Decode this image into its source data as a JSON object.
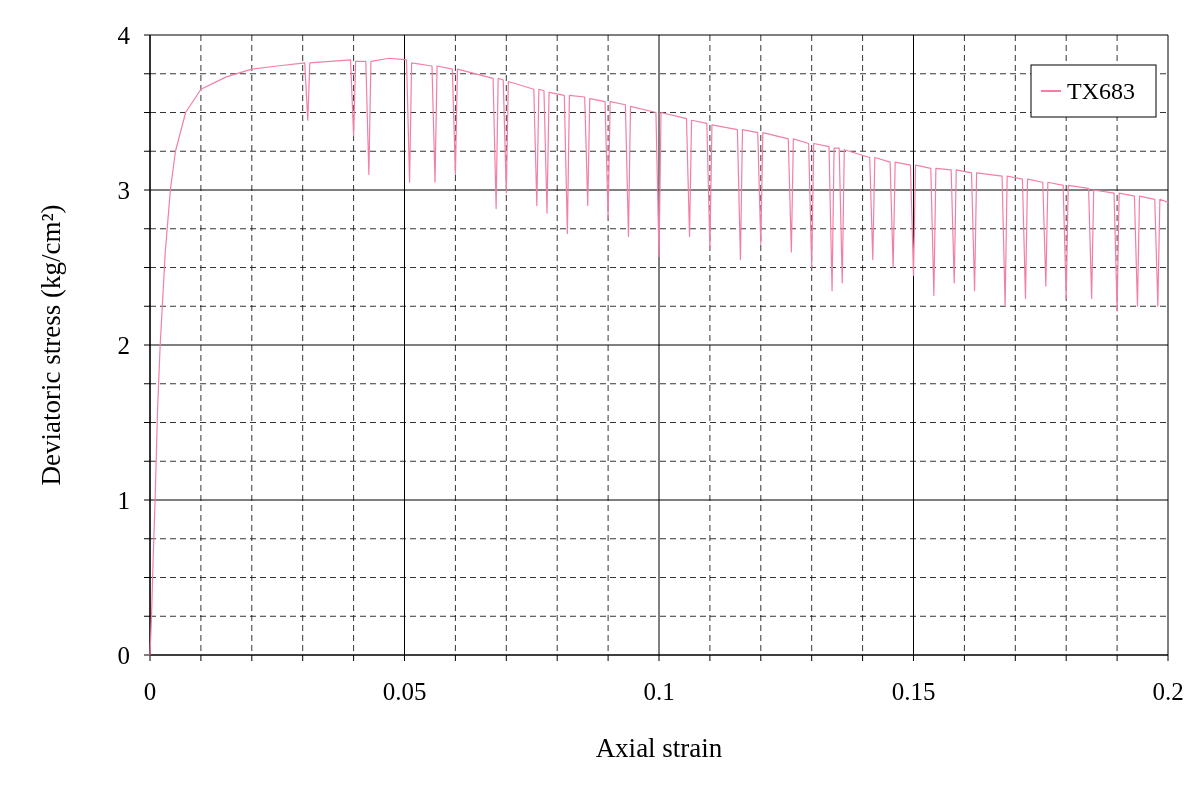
{
  "chart_data": {
    "type": "line",
    "xlabel": "Axial strain",
    "ylabel": "Deviatoric stress (kg/cm²)",
    "xlim": [
      0,
      0.2
    ],
    "ylim": [
      0,
      4
    ],
    "xticks": [
      0,
      {
        "value": 0.01,
        "label": null
      },
      {
        "value": 0.02,
        "label": null
      },
      {
        "value": 0.03,
        "label": null
      },
      {
        "value": 0.04,
        "label": null
      },
      0.05,
      {
        "value": 0.06,
        "label": null
      },
      {
        "value": 0.07,
        "label": null
      },
      {
        "value": 0.08,
        "label": null
      },
      {
        "value": 0.09,
        "label": null
      },
      0.1,
      {
        "value": 0.11,
        "label": null
      },
      {
        "value": 0.12,
        "label": null
      },
      {
        "value": 0.13,
        "label": null
      },
      {
        "value": 0.14,
        "label": null
      },
      0.15,
      {
        "value": 0.16,
        "label": null
      },
      {
        "value": 0.17,
        "label": null
      },
      {
        "value": 0.18,
        "label": null
      },
      {
        "value": 0.19,
        "label": null
      },
      0.2
    ],
    "yticks": [
      0,
      {
        "value": 0.25,
        "label": null
      },
      {
        "value": 0.5,
        "label": null
      },
      {
        "value": 0.75,
        "label": null
      },
      1,
      {
        "value": 1.25,
        "label": null
      },
      {
        "value": 1.5,
        "label": null
      },
      {
        "value": 1.75,
        "label": null
      },
      2,
      {
        "value": 2.25,
        "label": null
      },
      {
        "value": 2.5,
        "label": null
      },
      {
        "value": 2.75,
        "label": null
      },
      3,
      {
        "value": 3.25,
        "label": null
      },
      {
        "value": 3.5,
        "label": null
      },
      {
        "value": 3.75,
        "label": null
      },
      4
    ],
    "grid": true,
    "legend": "top right",
    "marker": "none",
    "line_style": "solid",
    "series": [
      {
        "name": "TX683",
        "color": "#f27fa6",
        "x": [
          0,
          0.0003,
          0.0006,
          0.001,
          0.0015,
          0.002,
          0.003,
          0.004,
          0.005,
          0.007,
          0.01,
          0.015,
          0.02,
          0.025,
          0.0304,
          0.031,
          0.0314,
          0.0394,
          0.04,
          0.0404,
          0.0424,
          0.043,
          0.0434,
          0.047,
          0.0504,
          0.051,
          0.0514,
          0.0554,
          0.056,
          0.0564,
          0.0594,
          0.06,
          0.0604,
          0.0674,
          0.068,
          0.0684,
          0.0694,
          0.07,
          0.0704,
          0.0754,
          0.076,
          0.0764,
          0.0774,
          0.078,
          0.0784,
          0.0814,
          0.082,
          0.0824,
          0.0854,
          0.086,
          0.0864,
          0.0894,
          0.09,
          0.0904,
          0.0934,
          0.094,
          0.0944,
          0.0994,
          0.1,
          0.1004,
          0.1054,
          0.106,
          0.1064,
          0.1094,
          0.11,
          0.1104,
          0.1154,
          0.116,
          0.1164,
          0.1194,
          0.12,
          0.1204,
          0.1254,
          0.126,
          0.1264,
          0.1294,
          0.13,
          0.1304,
          0.1334,
          0.134,
          0.1344,
          0.1354,
          0.136,
          0.1364,
          0.1414,
          0.142,
          0.1424,
          0.1454,
          0.146,
          0.1464,
          0.1494,
          0.15,
          0.1504,
          0.1534,
          0.154,
          0.1544,
          0.1574,
          0.158,
          0.1584,
          0.1614,
          0.162,
          0.1624,
          0.1674,
          0.168,
          0.1684,
          0.1714,
          0.172,
          0.1724,
          0.1754,
          0.176,
          0.1764,
          0.1794,
          0.18,
          0.1804,
          0.1844,
          0.185,
          0.1854,
          0.1894,
          0.19,
          0.1904,
          0.1934,
          0.194,
          0.1944,
          0.1974,
          0.198,
          0.1984,
          0.2
        ],
        "values": [
          0,
          0.25,
          0.6,
          1.0,
          1.6,
          2.0,
          2.6,
          3.0,
          3.25,
          3.5,
          3.65,
          3.73,
          3.78,
          3.8,
          3.82,
          3.45,
          3.82,
          3.84,
          3.35,
          3.83,
          3.83,
          3.1,
          3.83,
          3.85,
          3.84,
          3.05,
          3.82,
          3.8,
          3.05,
          3.8,
          3.78,
          3.1,
          3.78,
          3.72,
          2.88,
          3.72,
          3.71,
          2.98,
          3.7,
          3.65,
          2.9,
          3.65,
          3.64,
          2.85,
          3.63,
          3.61,
          2.72,
          3.61,
          3.6,
          2.9,
          3.59,
          3.57,
          2.82,
          3.57,
          3.55,
          2.7,
          3.54,
          3.5,
          2.57,
          3.5,
          3.46,
          2.7,
          3.45,
          3.43,
          2.62,
          3.42,
          3.39,
          2.55,
          3.39,
          3.37,
          2.65,
          3.37,
          3.33,
          2.6,
          3.33,
          3.3,
          2.5,
          3.3,
          3.28,
          2.35,
          3.27,
          3.27,
          2.4,
          3.26,
          3.21,
          2.55,
          3.21,
          3.18,
          2.5,
          3.18,
          3.16,
          2.45,
          3.16,
          3.14,
          2.32,
          3.14,
          3.13,
          2.4,
          3.13,
          3.11,
          2.35,
          3.11,
          3.09,
          2.25,
          3.09,
          3.07,
          2.3,
          3.07,
          3.05,
          2.38,
          3.05,
          3.03,
          2.3,
          3.03,
          3.01,
          2.3,
          3.0,
          2.98,
          2.22,
          2.98,
          2.96,
          2.25,
          2.96,
          2.94,
          2.25,
          2.94,
          2.92
        ]
      }
    ]
  }
}
